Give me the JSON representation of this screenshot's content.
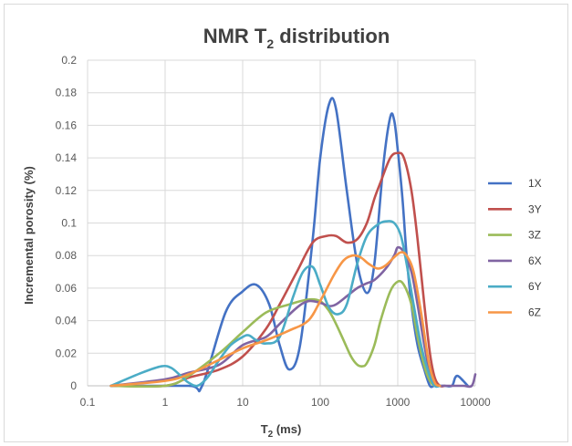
{
  "chart_data": {
    "type": "line",
    "title_main": "NMR T",
    "title_sub": "2",
    "title_rest": " distribution",
    "xlabel_main": "T",
    "xlabel_sub": "2",
    "xlabel_rest": " (ms)",
    "ylabel": "Incremental porosity (%)",
    "x_scale": "log",
    "xlim": [
      0.1,
      10000
    ],
    "ylim": [
      0,
      0.2
    ],
    "x_ticks": [
      "0.1",
      "1",
      "10",
      "100",
      "1000",
      "10000"
    ],
    "y_ticks": [
      "0",
      "0.02",
      "0.04",
      "0.06",
      "0.08",
      "0.1",
      "0.12",
      "0.14",
      "0.16",
      "0.18",
      "0.2"
    ],
    "grid": true,
    "legend_position": "right",
    "series": [
      {
        "name": "1X",
        "color": "#4472c4",
        "x": [
          0.2,
          2,
          3,
          6,
          10,
          15,
          22,
          30,
          40,
          55,
          80,
          100,
          130,
          160,
          220,
          300,
          400,
          500,
          650,
          800,
          900,
          1000,
          1150,
          1300,
          1500,
          1800,
          2200,
          2600,
          3000,
          4000,
          5000,
          5500,
          6000,
          7000,
          8000
        ],
        "y": [
          0,
          0,
          0,
          0.045,
          0.058,
          0.062,
          0.05,
          0.025,
          0.01,
          0.025,
          0.09,
          0.14,
          0.173,
          0.17,
          0.12,
          0.075,
          0.057,
          0.075,
          0.135,
          0.165,
          0.163,
          0.145,
          0.115,
          0.08,
          0.05,
          0.025,
          0.01,
          0,
          0,
          0,
          0,
          0.005,
          0.006,
          0.003,
          0
        ]
      },
      {
        "name": "3Y",
        "color": "#c0504d",
        "x": [
          0.2,
          1,
          2,
          5,
          10,
          20,
          30,
          50,
          80,
          120,
          160,
          220,
          300,
          400,
          500,
          600,
          800,
          1000,
          1200,
          1500,
          1800,
          2200,
          2600,
          3000,
          3500,
          4000
        ],
        "y": [
          0,
          0,
          0.005,
          0.01,
          0.018,
          0.035,
          0.05,
          0.07,
          0.088,
          0.092,
          0.092,
          0.088,
          0.09,
          0.1,
          0.115,
          0.125,
          0.14,
          0.143,
          0.14,
          0.12,
          0.09,
          0.05,
          0.02,
          0.005,
          0,
          0
        ]
      },
      {
        "name": "3Z",
        "color": "#9bbb59",
        "x": [
          0.2,
          1,
          2,
          5,
          10,
          20,
          40,
          70,
          100,
          130,
          160,
          200,
          250,
          300,
          350,
          400,
          500,
          600,
          800,
          1000,
          1200,
          1500,
          1800,
          2200,
          2600,
          3000,
          3500
        ],
        "y": [
          0,
          0,
          0.006,
          0.02,
          0.033,
          0.045,
          0.05,
          0.053,
          0.052,
          0.046,
          0.038,
          0.028,
          0.018,
          0.013,
          0.012,
          0.014,
          0.025,
          0.04,
          0.058,
          0.064,
          0.062,
          0.05,
          0.03,
          0.012,
          0.003,
          0,
          0
        ]
      },
      {
        "name": "6X",
        "color": "#8064a2",
        "x": [
          0.2,
          1,
          2,
          5,
          10,
          20,
          30,
          50,
          70,
          100,
          130,
          160,
          220,
          300,
          400,
          500,
          700,
          900,
          1000,
          1200,
          1500,
          1800,
          2200,
          2600,
          3000,
          3500,
          4000,
          5000,
          7000,
          9000,
          10000
        ],
        "y": [
          0,
          0.004,
          0.008,
          0.013,
          0.025,
          0.03,
          0.038,
          0.048,
          0.052,
          0.051,
          0.049,
          0.05,
          0.055,
          0.06,
          0.063,
          0.065,
          0.072,
          0.08,
          0.085,
          0.082,
          0.07,
          0.05,
          0.025,
          0.008,
          0.001,
          0,
          0,
          0,
          0,
          0,
          0.007
        ]
      },
      {
        "name": "6Y",
        "color": "#4bacc6",
        "x": [
          0.2,
          0.5,
          0.9,
          1.2,
          1.6,
          2,
          2.6,
          3.5,
          5,
          7,
          10,
          12,
          15,
          20,
          30,
          45,
          60,
          80,
          100,
          130,
          170,
          220,
          300,
          400,
          550,
          700,
          900,
          1100,
          1300,
          1600,
          2000,
          2500,
          3000,
          3500
        ],
        "y": [
          0,
          0.008,
          0.012,
          0.011,
          0.006,
          0.002,
          0,
          0.005,
          0.016,
          0.025,
          0.03,
          0.031,
          0.028,
          0.026,
          0.03,
          0.055,
          0.07,
          0.073,
          0.062,
          0.048,
          0.044,
          0.05,
          0.075,
          0.092,
          0.099,
          0.101,
          0.1,
          0.092,
          0.075,
          0.05,
          0.025,
          0.008,
          0,
          0
        ]
      },
      {
        "name": "6Z",
        "color": "#f79646",
        "x": [
          0.2,
          1,
          2,
          5,
          10,
          20,
          40,
          70,
          100,
          150,
          200,
          260,
          330,
          420,
          550,
          700,
          900,
          1100,
          1300,
          1600,
          2000,
          2500,
          3000,
          3500
        ],
        "y": [
          0,
          0.003,
          0.007,
          0.016,
          0.023,
          0.028,
          0.034,
          0.04,
          0.052,
          0.068,
          0.077,
          0.08,
          0.079,
          0.075,
          0.072,
          0.074,
          0.079,
          0.082,
          0.08,
          0.07,
          0.045,
          0.015,
          0.002,
          0
        ]
      }
    ]
  }
}
